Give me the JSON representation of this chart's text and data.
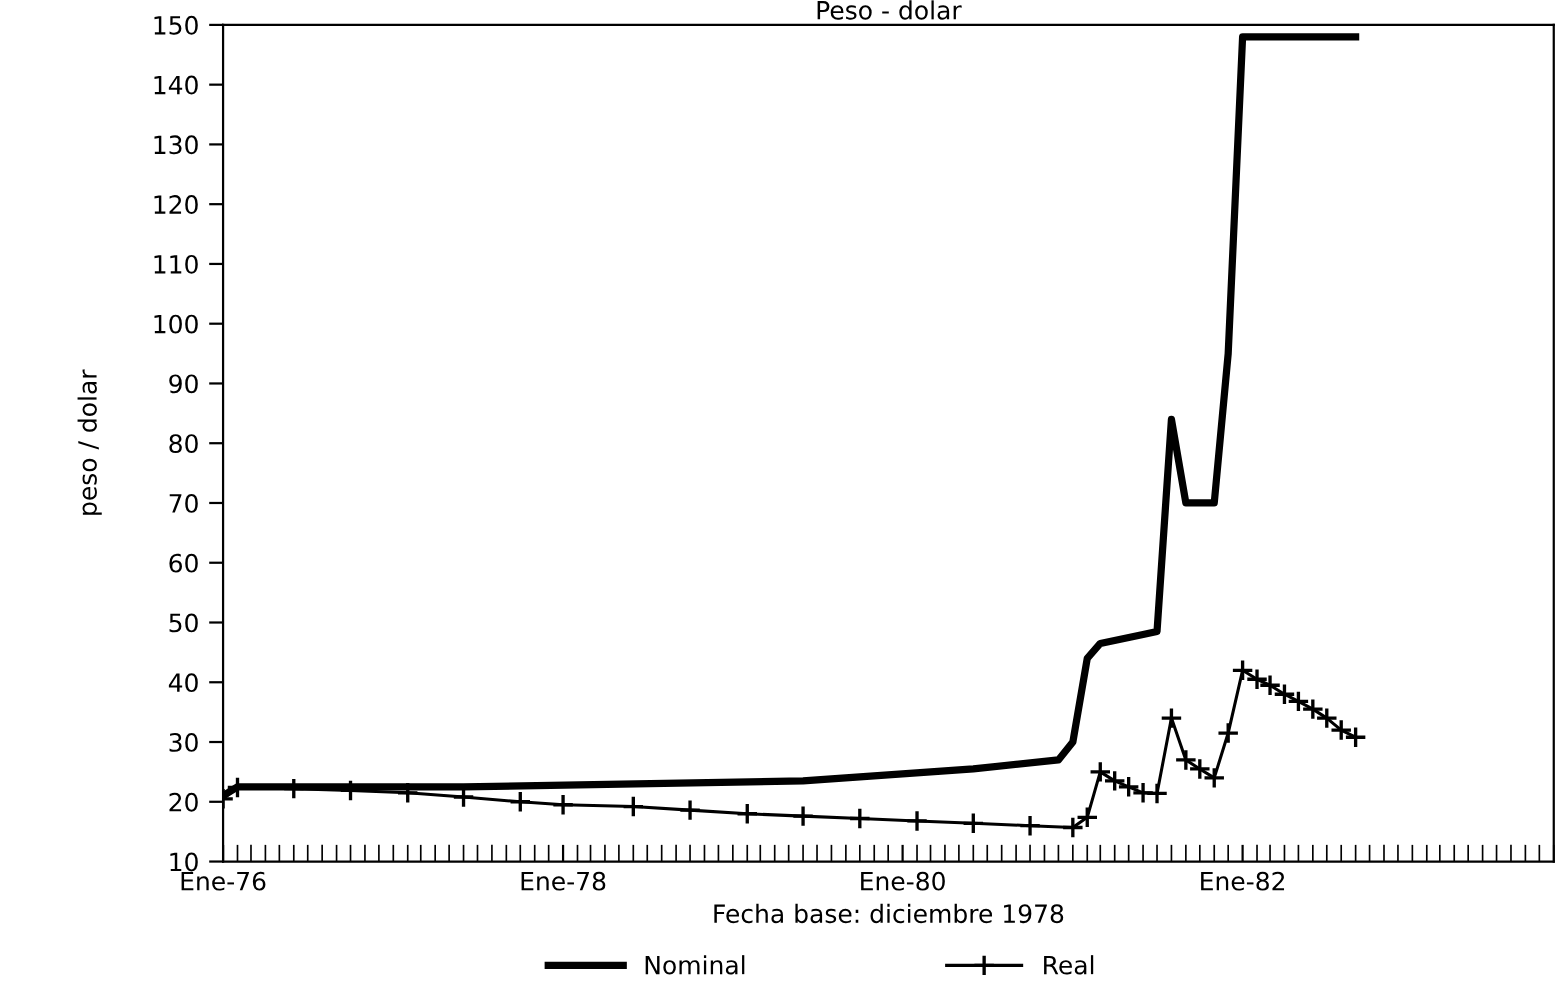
{
  "chart_data": {
    "type": "line",
    "title": "Peso - dolar",
    "xlabel": "Fecha base: diciembre 1978",
    "ylabel": "peso / dolar",
    "xlim": [
      "1976-01",
      "1983-11"
    ],
    "xticks": [
      {
        "value": "1976-01",
        "label": "Ene-76"
      },
      {
        "value": "1978-01",
        "label": "Ene-78"
      },
      {
        "value": "1980-01",
        "label": "Ene-80"
      },
      {
        "value": "1982-01",
        "label": "Ene-82"
      }
    ],
    "ylim": [
      10,
      150
    ],
    "yticks": [
      10,
      20,
      30,
      40,
      50,
      60,
      70,
      80,
      90,
      100,
      110,
      120,
      130,
      140,
      150
    ],
    "grid": false,
    "legend": "bottom",
    "series": [
      {
        "name": "Nominal",
        "color": "#000000",
        "marker": "none",
        "line_style": "solid",
        "x": [
          "1976-01",
          "1976-02",
          "1977-06",
          "1979-06",
          "1980-06",
          "1980-12",
          "1981-01",
          "1981-02",
          "1981-03",
          "1981-06",
          "1981-07",
          "1981-08",
          "1981-09",
          "1981-10",
          "1981-11",
          "1981-12",
          "1982-01",
          "1982-09"
        ],
        "values": [
          21,
          22.5,
          22.5,
          23.5,
          25.5,
          27,
          30,
          44,
          46.5,
          48,
          48.5,
          84,
          70,
          70,
          70,
          95,
          148,
          148
        ]
      },
      {
        "name": "Real",
        "color": "#000000",
        "marker": "cross",
        "line_style": "solid",
        "x": [
          "1976-01",
          "1976-02",
          "1976-06",
          "1976-10",
          "1977-02",
          "1977-06",
          "1977-10",
          "1978-01",
          "1978-06",
          "1978-10",
          "1979-02",
          "1979-06",
          "1979-10",
          "1980-02",
          "1980-06",
          "1980-10",
          "1981-01",
          "1981-02",
          "1981-03",
          "1981-04",
          "1981-05",
          "1981-06",
          "1981-07",
          "1981-08",
          "1981-09",
          "1981-10",
          "1981-11",
          "1981-12",
          "1982-01",
          "1982-02",
          "1982-03",
          "1982-04",
          "1982-05",
          "1982-06",
          "1982-07",
          "1982-08",
          "1982-09"
        ],
        "values": [
          20.5,
          22.4,
          22.2,
          21.9,
          21.5,
          20.8,
          20.0,
          19.5,
          19.2,
          18.6,
          18.0,
          17.6,
          17.2,
          16.8,
          16.4,
          16.0,
          15.7,
          17.4,
          25,
          23.5,
          22.5,
          21.5,
          21.4,
          34,
          27,
          25.5,
          24,
          31.5,
          42,
          40.5,
          39.5,
          38,
          36.8,
          35.5,
          34,
          32,
          30.8
        ]
      }
    ]
  }
}
